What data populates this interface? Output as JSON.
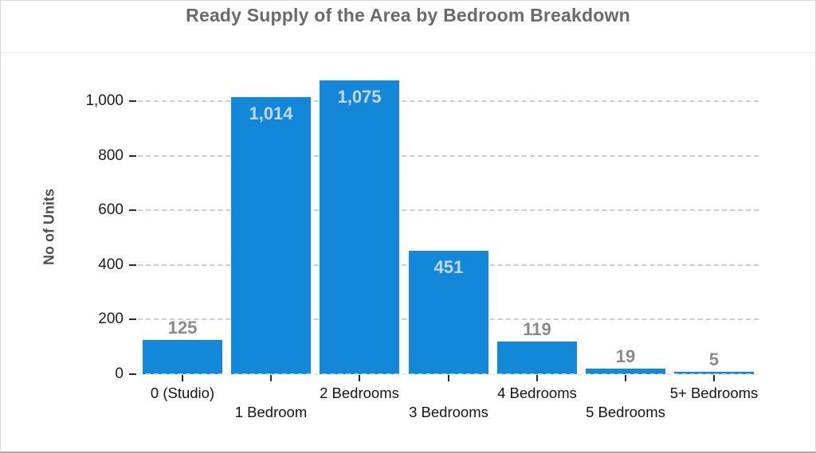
{
  "header": {
    "title": "Ready Supply of the Area by Bedroom Breakdown"
  },
  "chart_data": {
    "type": "bar",
    "title": "Ready Supply of the Area by Bedroom Breakdown",
    "categories": [
      "0 (Studio)",
      "1 Bedroom",
      "2 Bedrooms",
      "3 Bedrooms",
      "4 Bedrooms",
      "5 Bedrooms",
      "5+ Bedrooms"
    ],
    "values": [
      125,
      1014,
      1075,
      451,
      119,
      19,
      5
    ],
    "value_labels": [
      "125",
      "1,014",
      "1,075",
      "451",
      "119",
      "19",
      "5"
    ],
    "xlabel": "",
    "ylabel": "No of Units",
    "ylim": [
      0,
      1125
    ],
    "yticks": [
      0,
      200,
      400,
      600,
      800,
      1000
    ],
    "ytick_labels": [
      "0",
      "200",
      "400",
      "600",
      "800",
      "1,000"
    ],
    "grid": "horizontal-dashed",
    "legend": "none",
    "colors": {
      "bar": "#1388d9",
      "label_inside": "#c7d7e9",
      "label_outside": "#8a8a8a",
      "gridline": "#cdcdcd",
      "title": "#6a6a6a",
      "tick_text": "#1c1c1c"
    }
  }
}
